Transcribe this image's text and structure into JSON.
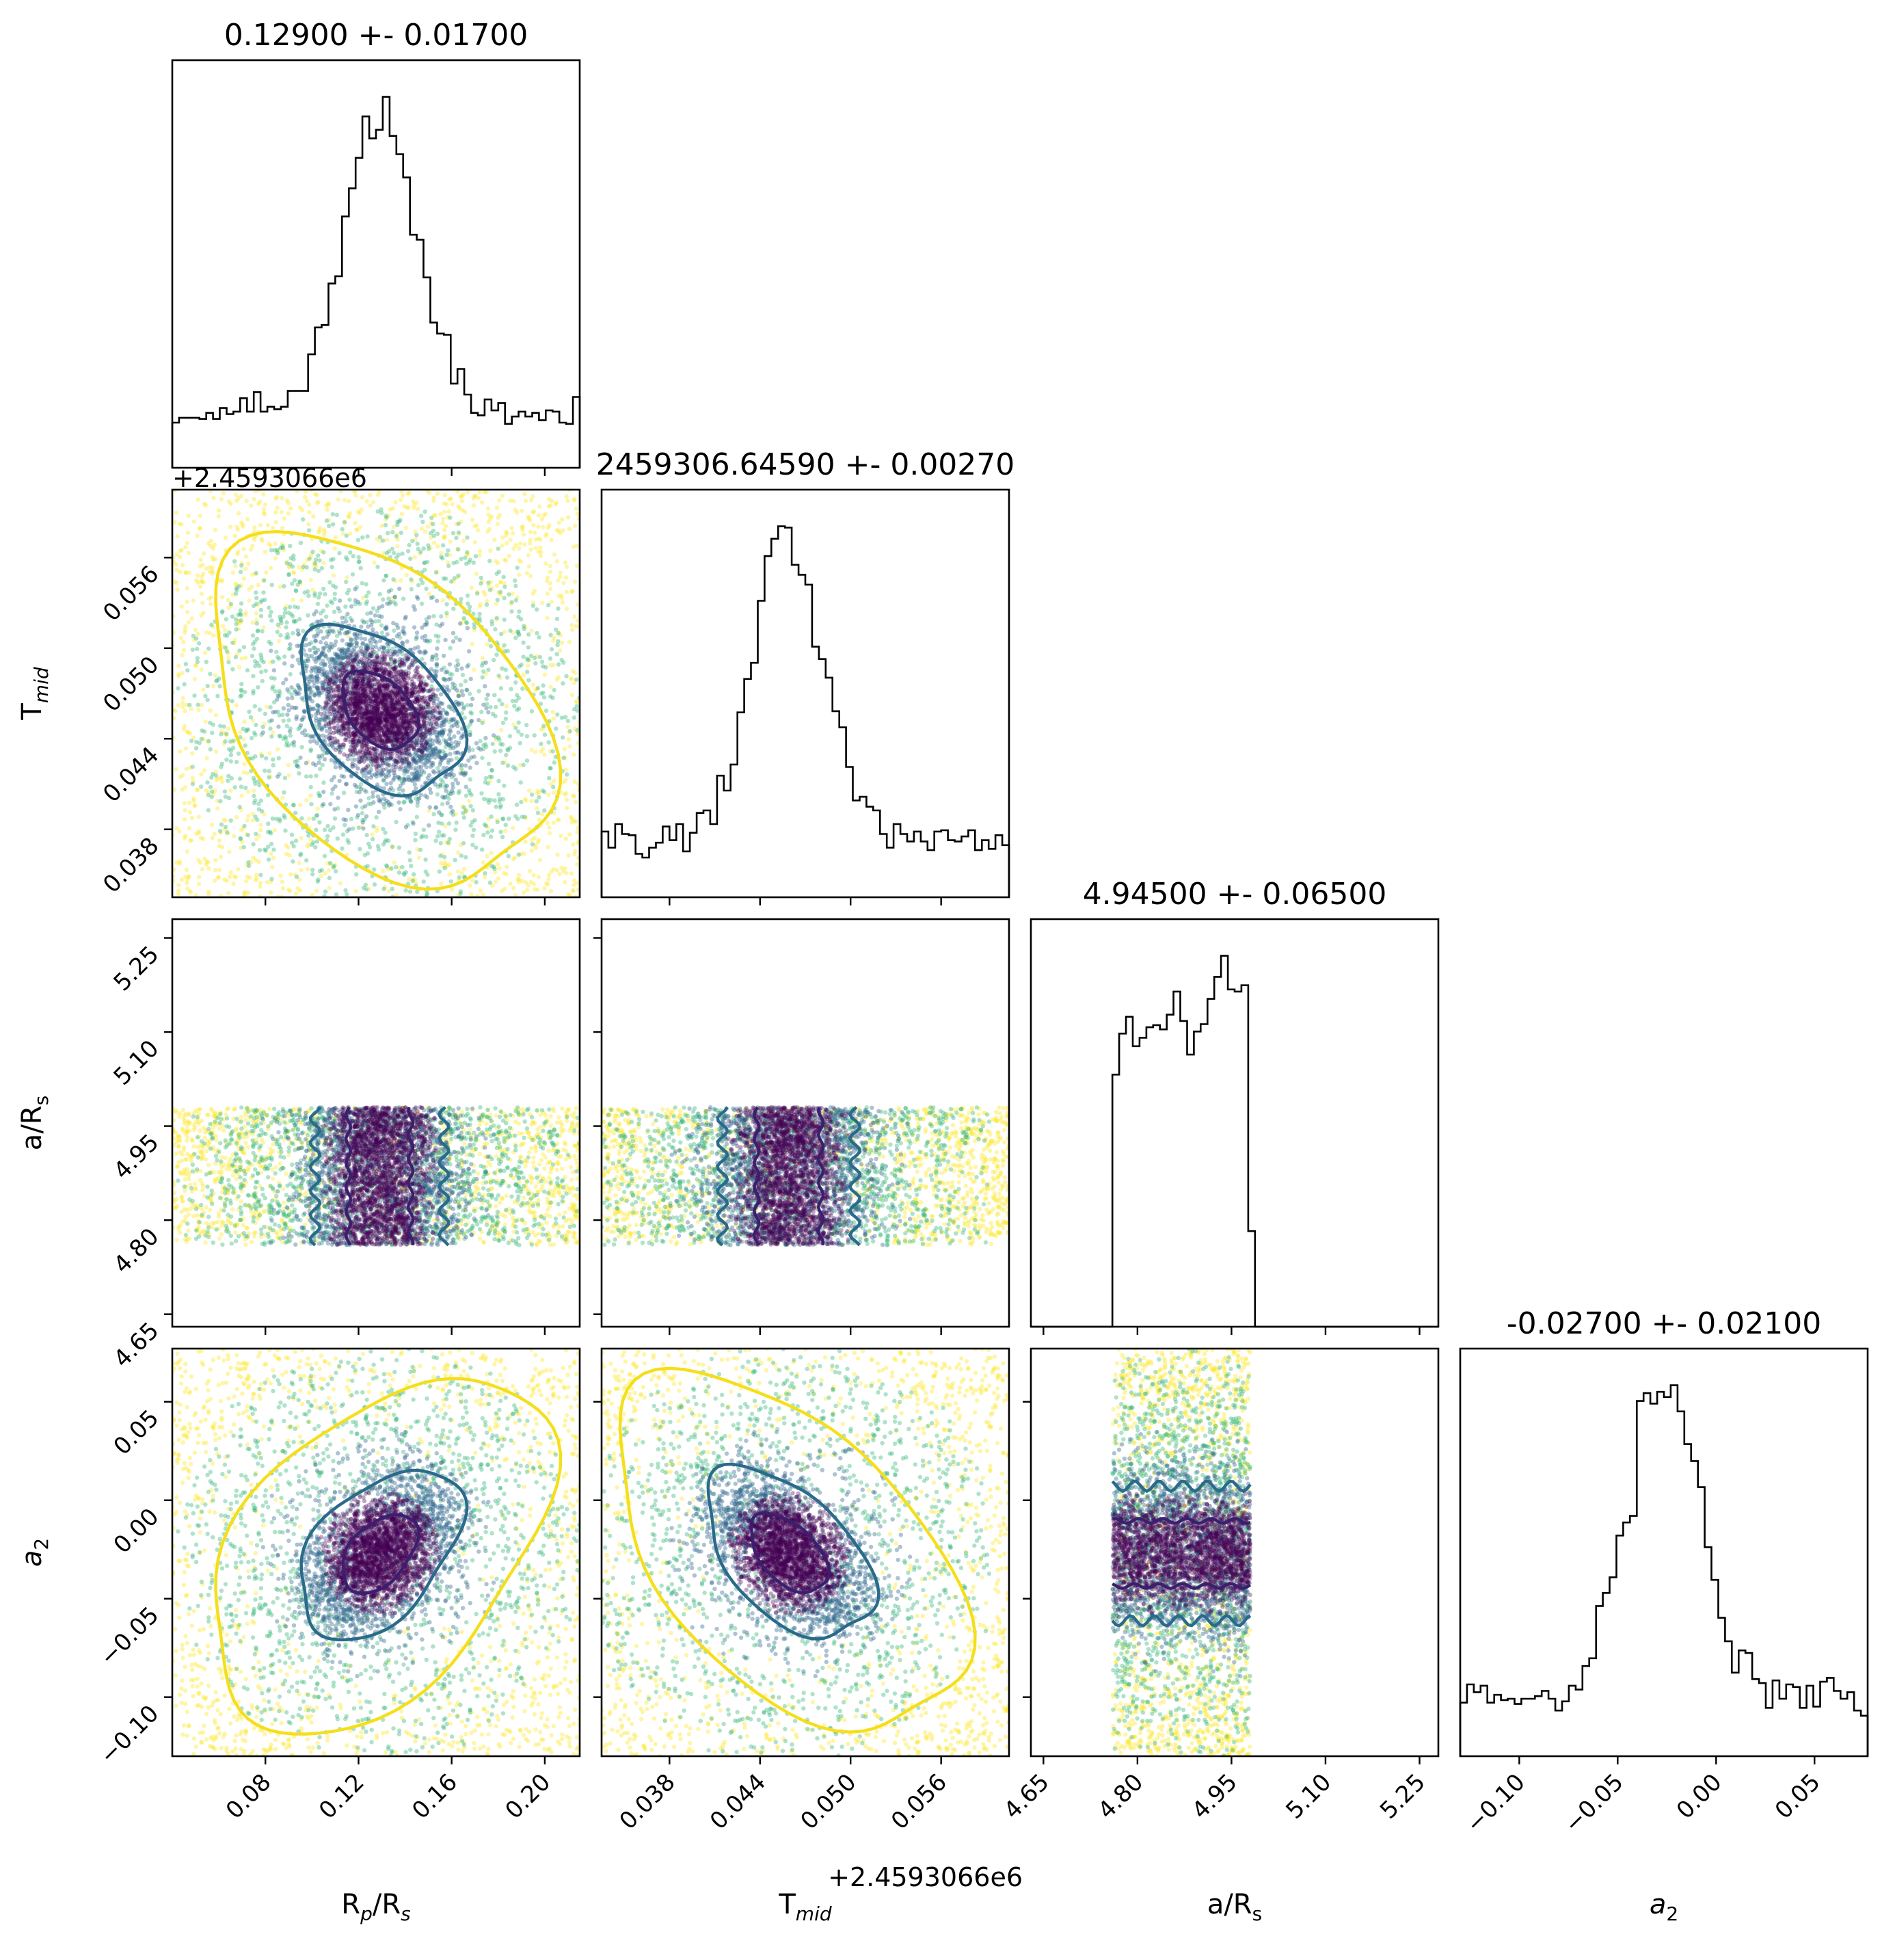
{
  "chart_data": {
    "type": "corner",
    "params": [
      {
        "key": "rp",
        "label": "R_p/R_s",
        "label_main": "R",
        "label_sub1": "p",
        "label_mid": "/R",
        "label_sub2": "s",
        "title": "0.12900 +- 0.01700",
        "lim": [
          0.04,
          0.215
        ],
        "ticks": [
          0.08,
          0.12,
          0.16,
          0.2
        ],
        "ticklabels": [
          "0.08",
          "0.12",
          "0.16",
          "0.20"
        ]
      },
      {
        "key": "tmid",
        "label": "T_mid",
        "label_main": "T",
        "label_sub1": "mid",
        "label_mid": "",
        "label_sub2": "",
        "title": "2459306.64590 +- 0.00270",
        "offset": "+2.4593066e6",
        "lim": [
          0.0335,
          0.0605
        ],
        "ticks": [
          0.038,
          0.044,
          0.05,
          0.056
        ],
        "ticklabels": [
          "0.038",
          "0.044",
          "0.050",
          "0.056"
        ]
      },
      {
        "key": "ars",
        "label": "a/R_s",
        "label_main": "a/R",
        "label_sub1": "s",
        "label_mid": "",
        "label_sub2": "",
        "title": "4.94500 +- 0.06500",
        "lim": [
          4.63,
          5.28
        ],
        "ticks": [
          4.65,
          4.8,
          4.95,
          5.1,
          5.25
        ],
        "ticklabels": [
          "4.65",
          "4.80",
          "4.95",
          "5.10",
          "5.25"
        ]
      },
      {
        "key": "a2",
        "label": "a_2",
        "label_main": "a",
        "label_sub1": "2",
        "label_mid": "",
        "label_sub2": "",
        "title": "-0.02700 +- 0.02100",
        "lim": [
          -0.13,
          0.077
        ],
        "ticks": [
          -0.1,
          -0.05,
          0.0,
          0.05
        ],
        "ticklabels": [
          "−0.10",
          "−0.05",
          "0.00",
          "0.05"
        ]
      }
    ],
    "distributions": {
      "rp": {
        "center": 0.129,
        "sigma": 0.017,
        "core_fraction": 0.55,
        "range": [
          0.04,
          0.215
        ]
      },
      "tmid": {
        "center": 0.0459,
        "sigma": 0.0027,
        "core_fraction": 0.55,
        "range": [
          0.0335,
          0.0605
        ]
      },
      "ars": {
        "center": 4.945,
        "sigma": 0.065,
        "uniform_range": [
          4.76,
          4.98
        ],
        "rising": true
      },
      "a2": {
        "center": -0.027,
        "sigma": 0.021,
        "core_fraction": 0.55,
        "range": [
          -0.13,
          0.077
        ]
      }
    },
    "point_colors": [
      "#440154",
      "#31688e",
      "#35b779",
      "#fde725"
    ],
    "contour_colors": [
      "#3b1f6e",
      "#2a6a8a",
      "#f5de1c"
    ],
    "histogram_color": "#000000",
    "grid": false
  }
}
